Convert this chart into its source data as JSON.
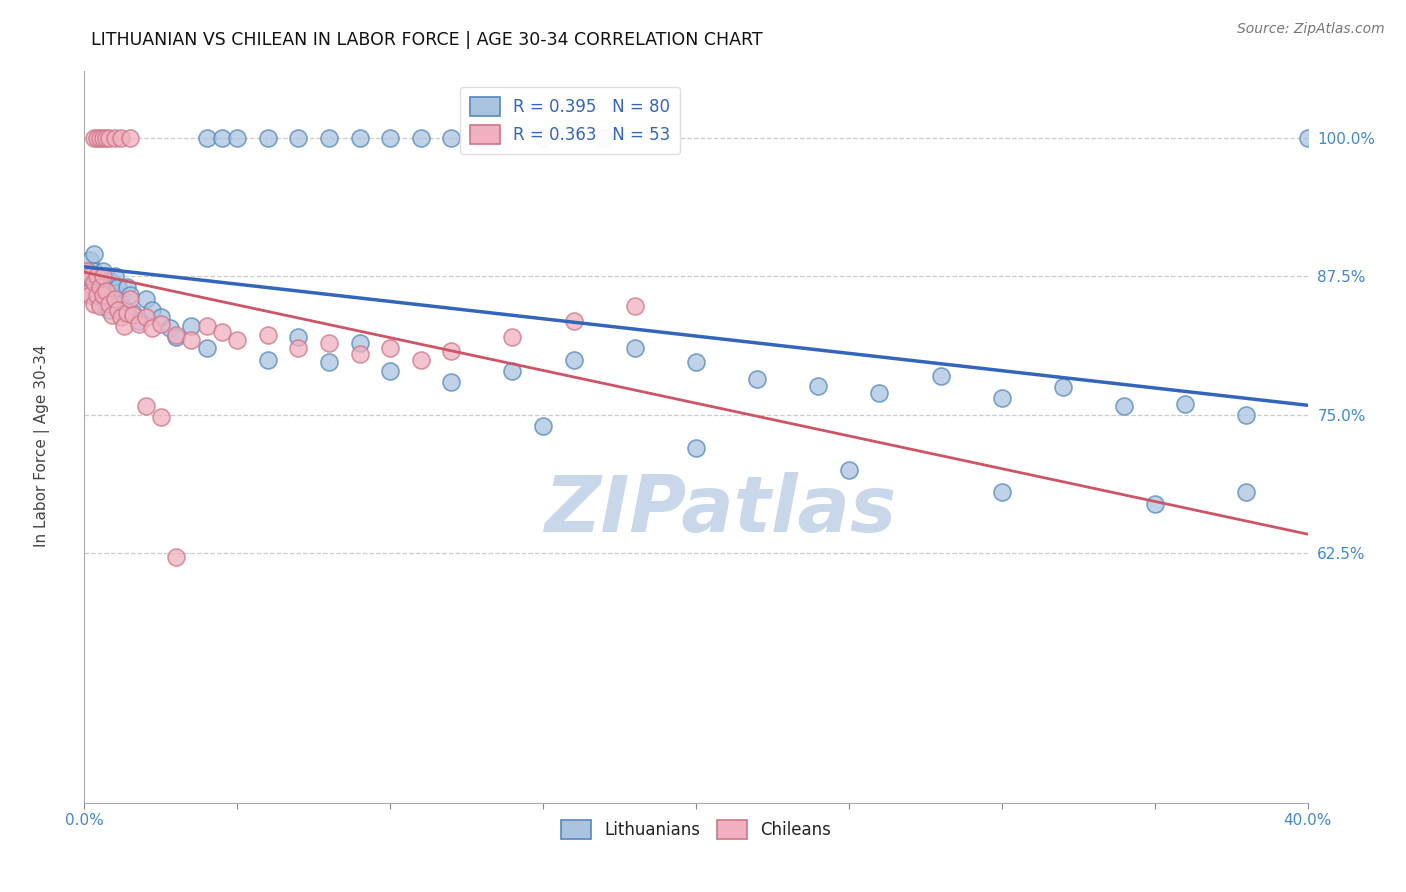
{
  "title": "LITHUANIAN VS CHILEAN IN LABOR FORCE | AGE 30-34 CORRELATION CHART",
  "source_text": "Source: ZipAtlas.com",
  "ylabel": "In Labor Force | Age 30-34",
  "xlim": [
    0.0,
    0.4
  ],
  "ylim": [
    0.4,
    1.06
  ],
  "background_color": "#ffffff",
  "blue_face": "#aac4e0",
  "blue_edge": "#5588bb",
  "pink_face": "#f0b0bf",
  "pink_edge": "#cc7788",
  "blue_line_color": "#3366bb",
  "pink_line_color": "#cc5566",
  "grid_color": "#cccccc",
  "tick_color": "#4488cc",
  "ylabel_color": "#444444",
  "title_color": "#111111",
  "source_color": "#777777",
  "watermark_text": "ZIPatlas",
  "watermark_color": "#c8d8ea",
  "legend_blue_R": "0.395",
  "legend_blue_N": "80",
  "legend_pink_R": "0.363",
  "legend_pink_N": "53",
  "ytick_positions": [
    0.625,
    0.75,
    0.875,
    1.0
  ],
  "ytick_labels": [
    "62.5%",
    "75.0%",
    "87.5%",
    "100.0%"
  ],
  "blue_x": [
    0.001,
    0.001,
    0.001,
    0.002,
    0.002,
    0.002,
    0.003,
    0.003,
    0.003,
    0.003,
    0.004,
    0.004,
    0.004,
    0.005,
    0.005,
    0.005,
    0.006,
    0.006,
    0.006,
    0.007,
    0.007,
    0.008,
    0.008,
    0.009,
    0.009,
    0.01,
    0.01,
    0.011,
    0.012,
    0.013,
    0.014,
    0.015,
    0.016,
    0.018,
    0.02,
    0.022,
    0.025,
    0.028,
    0.03,
    0.035,
    0.04,
    0.045,
    0.05,
    0.06,
    0.07,
    0.08,
    0.09,
    0.1,
    0.11,
    0.12,
    0.13,
    0.15,
    0.17,
    0.04,
    0.06,
    0.07,
    0.08,
    0.09,
    0.1,
    0.12,
    0.14,
    0.16,
    0.18,
    0.2,
    0.22,
    0.24,
    0.26,
    0.28,
    0.3,
    0.32,
    0.34,
    0.36,
    0.38,
    0.4,
    0.3,
    0.35,
    0.38,
    0.15,
    0.2,
    0.25
  ],
  "blue_y": [
    0.88,
    0.87,
    0.86,
    0.875,
    0.86,
    0.89,
    0.875,
    0.86,
    0.88,
    0.895,
    0.87,
    0.855,
    0.865,
    0.875,
    0.86,
    0.85,
    0.87,
    0.855,
    0.88,
    0.86,
    0.875,
    0.86,
    0.845,
    0.87,
    0.855,
    0.875,
    0.86,
    0.865,
    0.85,
    0.845,
    0.865,
    0.858,
    0.842,
    0.835,
    0.855,
    0.845,
    0.838,
    0.828,
    0.82,
    0.83,
    1.0,
    1.0,
    1.0,
    1.0,
    1.0,
    1.0,
    1.0,
    1.0,
    1.0,
    1.0,
    1.0,
    1.0,
    1.0,
    0.81,
    0.8,
    0.82,
    0.798,
    0.815,
    0.79,
    0.78,
    0.79,
    0.8,
    0.81,
    0.798,
    0.782,
    0.776,
    0.77,
    0.785,
    0.765,
    0.775,
    0.758,
    0.76,
    0.75,
    1.0,
    0.68,
    0.67,
    0.68,
    0.74,
    0.72,
    0.7
  ],
  "pink_x": [
    0.001,
    0.001,
    0.002,
    0.002,
    0.003,
    0.003,
    0.004,
    0.004,
    0.005,
    0.005,
    0.006,
    0.006,
    0.007,
    0.008,
    0.009,
    0.01,
    0.011,
    0.012,
    0.013,
    0.014,
    0.015,
    0.016,
    0.018,
    0.02,
    0.022,
    0.025,
    0.03,
    0.035,
    0.04,
    0.045,
    0.05,
    0.06,
    0.07,
    0.08,
    0.09,
    0.1,
    0.11,
    0.12,
    0.14,
    0.16,
    0.18,
    0.003,
    0.004,
    0.005,
    0.006,
    0.007,
    0.008,
    0.01,
    0.012,
    0.015,
    0.02,
    0.025,
    0.03
  ],
  "pink_y": [
    0.88,
    0.86,
    0.875,
    0.858,
    0.87,
    0.85,
    0.875,
    0.858,
    0.865,
    0.848,
    0.875,
    0.858,
    0.862,
    0.85,
    0.84,
    0.855,
    0.845,
    0.838,
    0.83,
    0.842,
    0.855,
    0.84,
    0.832,
    0.838,
    0.828,
    0.832,
    0.822,
    0.818,
    0.83,
    0.825,
    0.818,
    0.822,
    0.81,
    0.815,
    0.805,
    0.81,
    0.8,
    0.808,
    0.82,
    0.835,
    0.848,
    1.0,
    1.0,
    1.0,
    1.0,
    1.0,
    1.0,
    1.0,
    1.0,
    1.0,
    0.758,
    0.748,
    0.622
  ]
}
